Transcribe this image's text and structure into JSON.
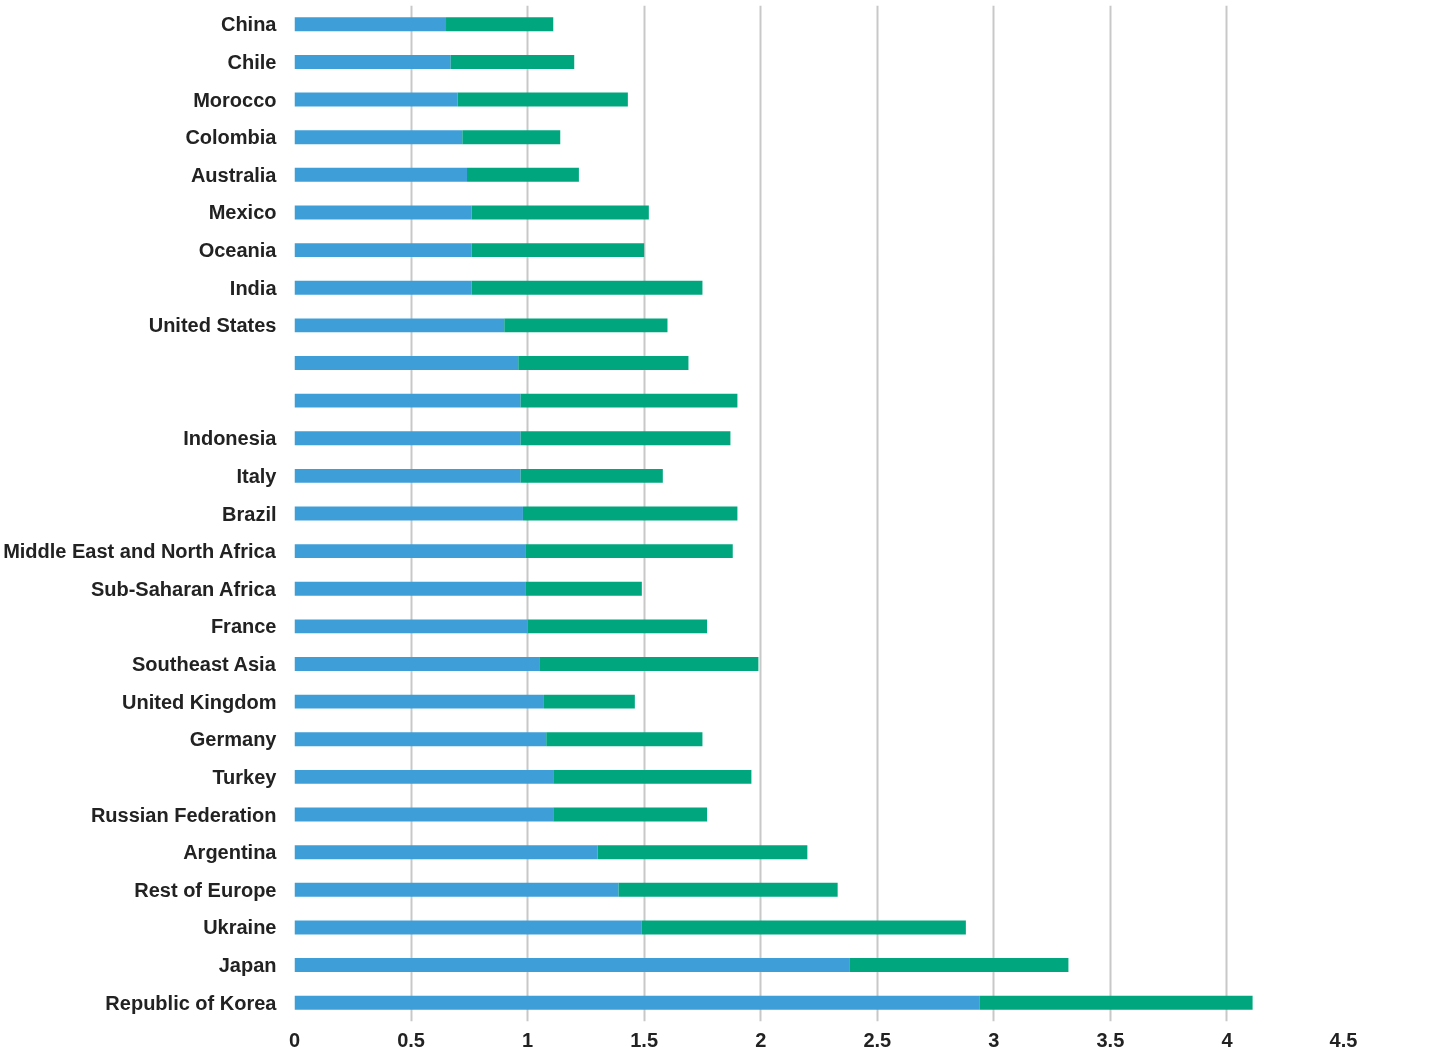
{
  "chart_data": {
    "type": "bar",
    "orientation": "horizontal",
    "stacked": true,
    "categories": [
      "China",
      "Chile",
      "Morocco",
      "Colombia",
      "Australia",
      "Mexico",
      "Oceania",
      "India",
      "United States",
      null,
      null,
      "Indonesia",
      "Italy",
      "Brazil",
      "Middle East and North Africa",
      "Sub-Saharan Africa",
      "France",
      "Southeast Asia",
      "United Kingdom",
      "Germany",
      "Turkey",
      "Russian Federation",
      "Argentina",
      "Rest of Europe",
      "Ukraine",
      "Japan",
      "Republic of Korea"
    ],
    "series": [
      {
        "color": "#3e9fd8",
        "values": [
          0.65,
          0.67,
          0.7,
          0.72,
          0.74,
          0.76,
          0.76,
          0.76,
          0.9,
          0.96,
          0.97,
          0.97,
          0.97,
          0.98,
          0.99,
          0.99,
          1.0,
          1.05,
          1.07,
          1.08,
          1.11,
          1.11,
          1.3,
          1.39,
          1.49,
          2.38,
          2.94
        ]
      },
      {
        "color": "#00a67e",
        "values": [
          0.46,
          0.53,
          0.73,
          0.42,
          0.48,
          0.76,
          0.74,
          0.99,
          0.7,
          0.73,
          0.93,
          0.9,
          0.61,
          0.92,
          0.89,
          0.5,
          0.77,
          0.94,
          0.39,
          0.67,
          0.85,
          0.66,
          0.9,
          0.94,
          1.39,
          0.94,
          1.17
        ]
      }
    ],
    "xlim": [
      0,
      4.5
    ],
    "xticks": [
      0,
      0.5,
      1,
      1.5,
      2,
      2.5,
      3,
      3.5,
      4,
      4.5
    ],
    "grid": "x"
  }
}
